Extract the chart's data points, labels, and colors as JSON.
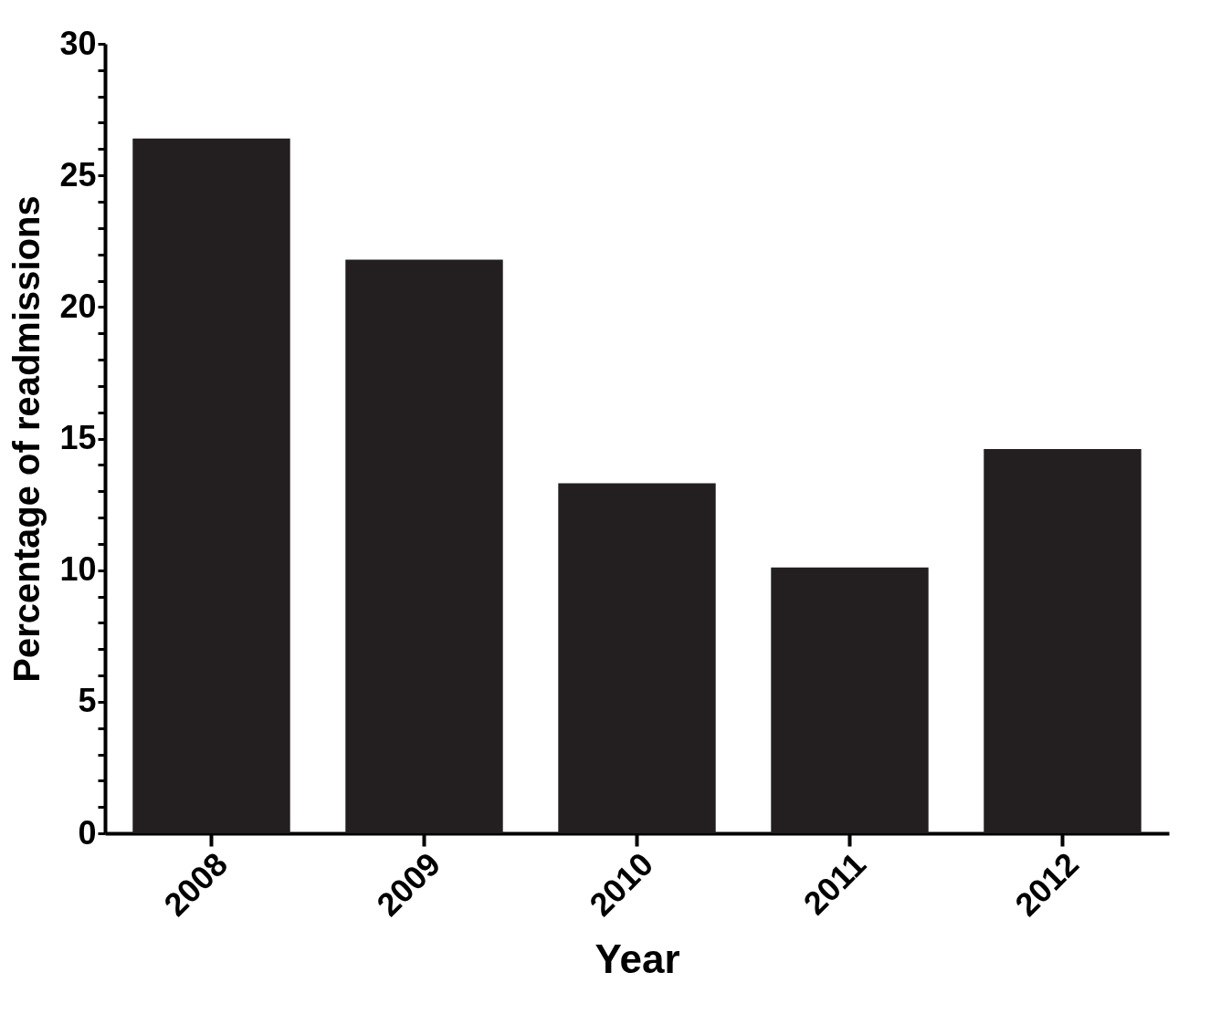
{
  "chart_data": {
    "type": "bar",
    "xlabel": "Year",
    "ylabel": "Percentage of readmissions",
    "categories": [
      "2008",
      "2009",
      "2010",
      "2011",
      "2012"
    ],
    "values": [
      26.4,
      21.8,
      13.3,
      10.1,
      14.6
    ],
    "color": "#231f20",
    "ylim": [
      0,
      30
    ],
    "yticks": [
      0,
      {
        "value": 1,
        "label": null
      },
      {
        "value": 2,
        "label": null
      },
      {
        "value": 3,
        "label": null
      },
      {
        "value": 4,
        "label": null
      },
      5,
      {
        "value": 6,
        "label": null
      },
      {
        "value": 7,
        "label": null
      },
      {
        "value": 8,
        "label": null
      },
      {
        "value": 9,
        "label": null
      },
      10,
      {
        "value": 11,
        "label": null
      },
      {
        "value": 12,
        "label": null
      },
      {
        "value": 13,
        "label": null
      },
      {
        "value": 14,
        "label": null
      },
      15,
      {
        "value": 16,
        "label": null
      },
      {
        "value": 17,
        "label": null
      },
      {
        "value": 18,
        "label": null
      },
      {
        "value": 19,
        "label": null
      },
      20,
      {
        "value": 21,
        "label": null
      },
      {
        "value": 22,
        "label": null
      },
      {
        "value": 23,
        "label": null
      },
      {
        "value": 24,
        "label": null
      },
      25,
      {
        "value": 26,
        "label": null
      },
      {
        "value": 27,
        "label": null
      },
      {
        "value": 28,
        "label": null
      },
      {
        "value": 29,
        "label": null
      },
      30
    ],
    "grid": false
  }
}
